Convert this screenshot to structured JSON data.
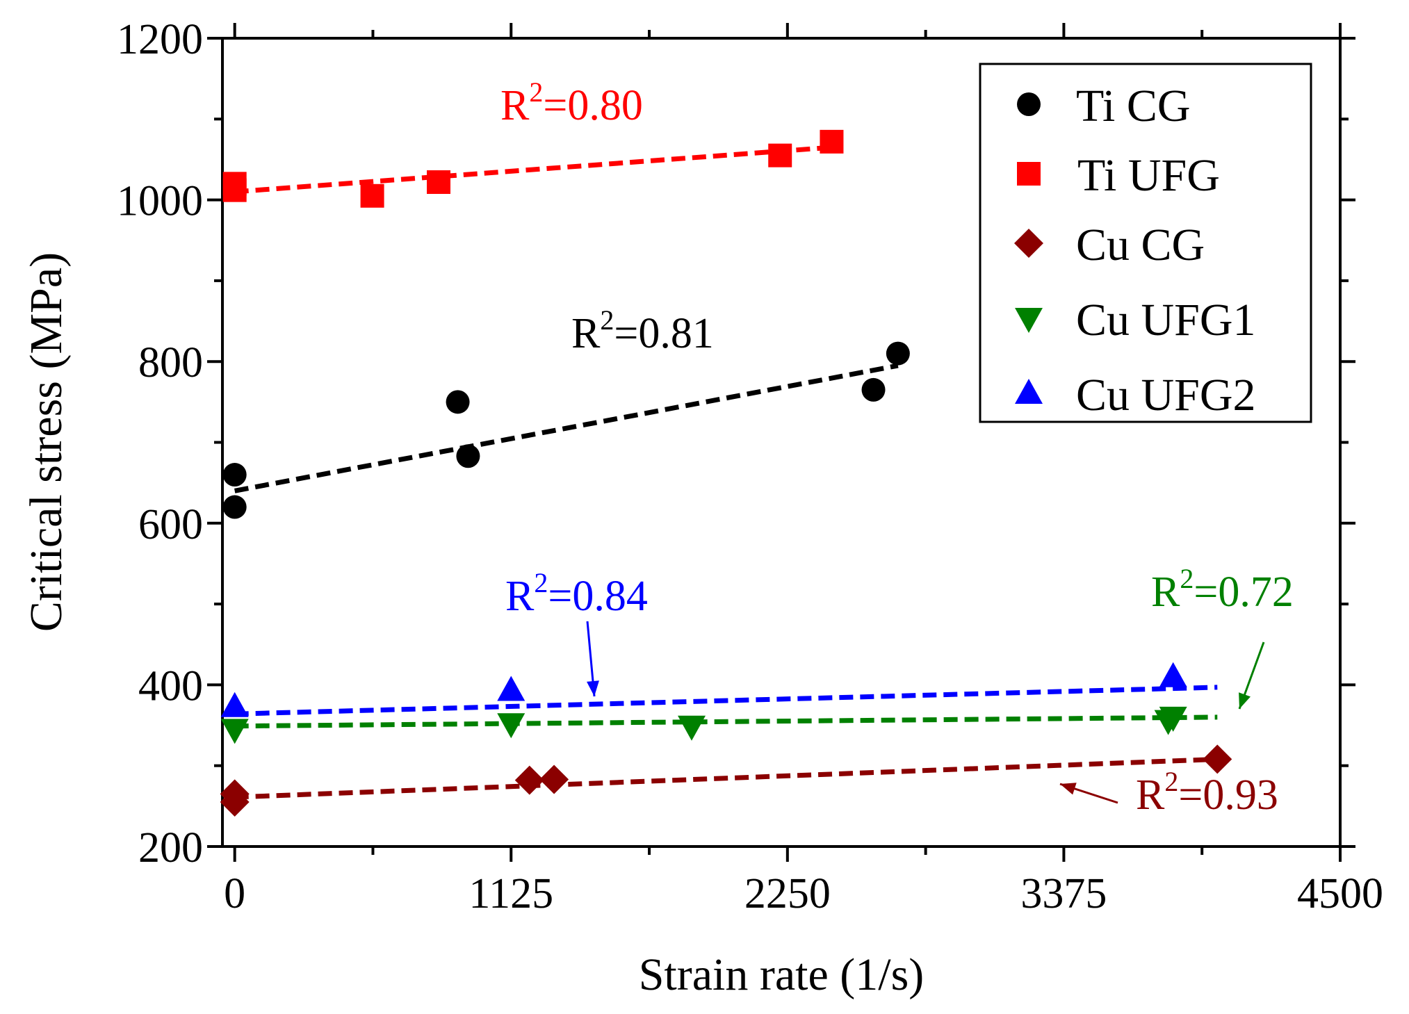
{
  "chart_data": {
    "type": "scatter",
    "title": "",
    "xlabel": "Strain rate (1/s)",
    "ylabel": "Critical stress (MPa)",
    "xlim": [
      -50,
      4500
    ],
    "ylim": [
      200,
      1200
    ],
    "xticks": [
      0,
      1125,
      2250,
      3375,
      4500
    ],
    "yticks": [
      200,
      400,
      600,
      800,
      1000,
      1200
    ],
    "legend_position": "top-right",
    "series": [
      {
        "name": "Ti CG",
        "color": "#000000",
        "marker": "circle",
        "x": [
          0.001,
          0.01,
          908,
          950,
          2600,
          2700
        ],
        "y": [
          620,
          660,
          750,
          683,
          765,
          810
        ],
        "fit": {
          "x": [
            0,
            2700
          ],
          "y": [
            640,
            795
          ]
        },
        "r2_label": "R",
        "r2_value": "=0.81"
      },
      {
        "name": "Ti UFG",
        "color": "#ff0000",
        "marker": "square",
        "x": [
          0.001,
          0.01,
          560,
          830,
          2220,
          2430
        ],
        "y": [
          1012,
          1020,
          1005,
          1022,
          1055,
          1072
        ],
        "fit": {
          "x": [
            0,
            2430
          ],
          "y": [
            1010,
            1065
          ]
        },
        "r2_label": "R",
        "r2_value": "=0.80"
      },
      {
        "name": "Cu CG",
        "color": "#8b0000",
        "marker": "diamond",
        "x": [
          0.001,
          0.01,
          1200,
          1300,
          4000
        ],
        "y": [
          255,
          265,
          282,
          283,
          308
        ],
        "fit": {
          "x": [
            0,
            4000
          ],
          "y": [
            261,
            308
          ]
        },
        "r2_label": "R",
        "r2_value": "=0.93"
      },
      {
        "name": "Cu UFG1",
        "color": "#008000",
        "marker": "triangle-down",
        "x": [
          0.001,
          1125,
          1860,
          3800,
          3820
        ],
        "y": [
          345,
          352,
          349,
          356,
          360
        ],
        "fit": {
          "x": [
            0,
            4000
          ],
          "y": [
            349,
            360
          ]
        },
        "r2_label": "R",
        "r2_value": "=0.72"
      },
      {
        "name": "Cu UFG2",
        "color": "#0000ff",
        "marker": "triangle-up",
        "x": [
          0.001,
          1125,
          3820
        ],
        "y": [
          373,
          393,
          410
        ],
        "fit": {
          "x": [
            0,
            4000
          ],
          "y": [
            364,
            397
          ]
        },
        "r2_label": "R",
        "r2_value": "=0.84"
      }
    ]
  }
}
